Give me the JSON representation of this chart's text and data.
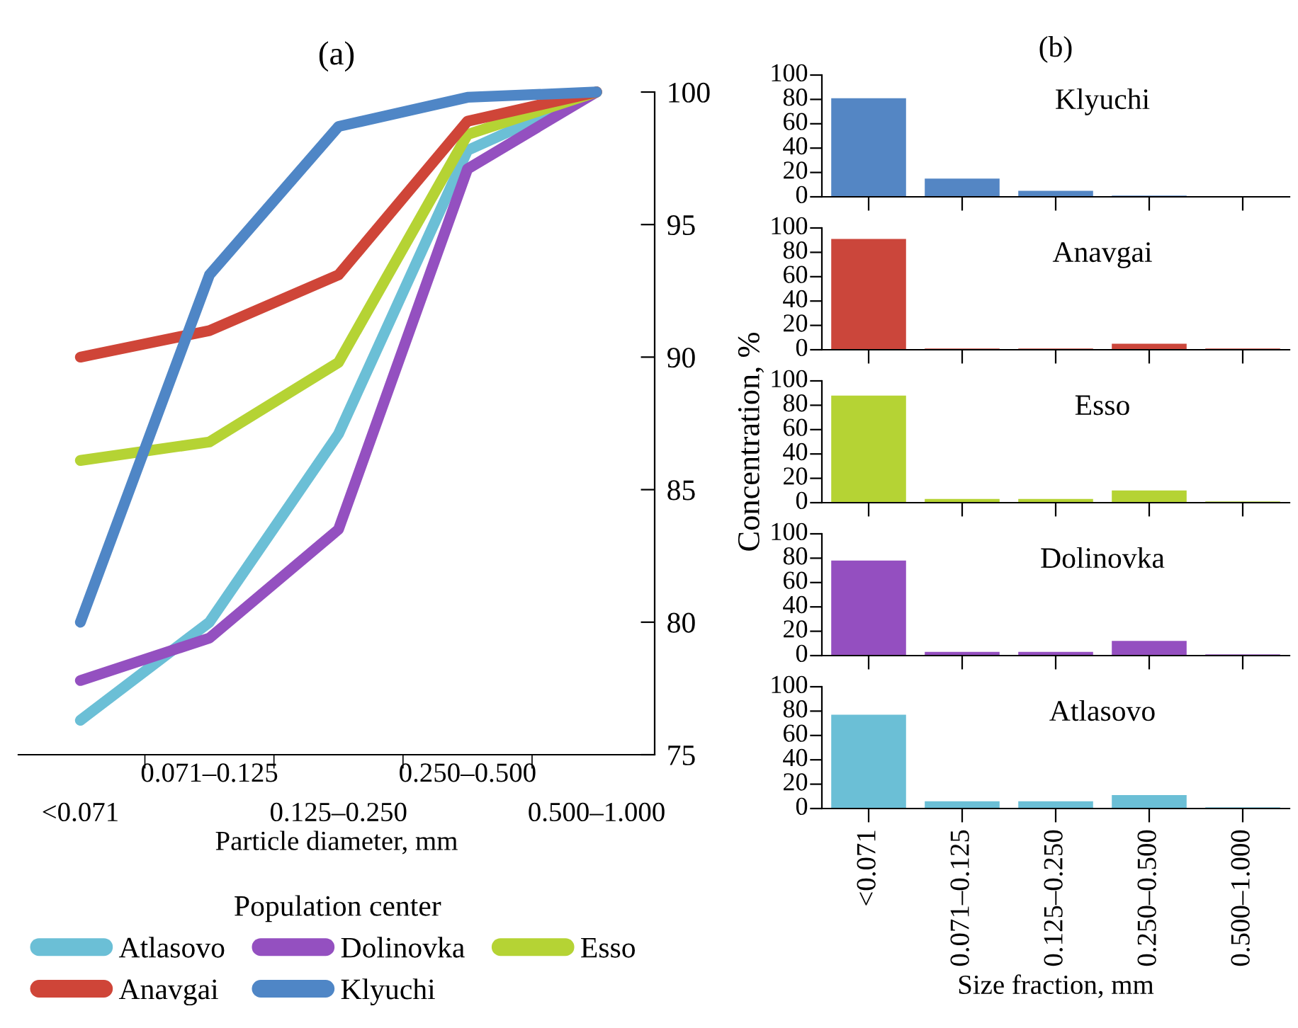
{
  "chart_data": [
    {
      "type": "line",
      "title": "(a)",
      "xlabel": "Particle diameter, mm",
      "legend_title": "Population center",
      "legend": "bottom",
      "categories": [
        "<0.071",
        "0.071–0.125",
        "0.125–0.250",
        "0.250–0.500",
        "0.500–1.000"
      ],
      "ylim": [
        75,
        100
      ],
      "yticks": [
        75,
        80,
        85,
        90,
        95,
        100
      ],
      "grid": false,
      "line_style": "solid",
      "marker": "none",
      "series": [
        {
          "name": "Atlasovo",
          "color": "#6bbfd6",
          "values": [
            76.3,
            80.0,
            87.1,
            97.8,
            100
          ]
        },
        {
          "name": "Dolinovka",
          "color": "#9450c0",
          "values": [
            77.8,
            79.4,
            83.5,
            97.1,
            100
          ]
        },
        {
          "name": "Esso",
          "color": "#b5d334",
          "values": [
            86.1,
            86.8,
            89.8,
            98.4,
            100
          ]
        },
        {
          "name": "Anavgai",
          "color": "#cf4538",
          "values": [
            90.0,
            91.0,
            93.1,
            98.9,
            100
          ]
        },
        {
          "name": "Klyuchi",
          "color": "#4f86c6",
          "values": [
            80.0,
            93.1,
            98.7,
            99.8,
            100
          ]
        }
      ]
    },
    {
      "type": "bar",
      "title": "Klyuchi",
      "annotations": [
        "(b)"
      ],
      "categories": [
        null,
        null,
        null,
        null,
        null
      ],
      "values": [
        81,
        15,
        5,
        1,
        0
      ],
      "color": "#5486c4",
      "ylim": [
        0,
        100
      ],
      "yticks": [
        0,
        20,
        40,
        60,
        80,
        100
      ],
      "tick_labels": "y"
    },
    {
      "type": "bar",
      "title": "Anavgai",
      "categories": [
        null,
        null,
        null,
        null,
        null
      ],
      "values": [
        91,
        1,
        1,
        5,
        1
      ],
      "color": "#cb463b",
      "ylim": [
        0,
        100
      ],
      "yticks": [
        0,
        20,
        40,
        60,
        80,
        100
      ],
      "tick_labels": "y"
    },
    {
      "type": "bar",
      "title": "Esso",
      "ylabel": "Concentration, %",
      "categories": [
        null,
        null,
        null,
        null,
        null
      ],
      "values": [
        88,
        3,
        3,
        10,
        1
      ],
      "color": "#b5d334",
      "ylim": [
        0,
        100
      ],
      "yticks": [
        0,
        20,
        40,
        60,
        80,
        100
      ],
      "tick_labels": "y"
    },
    {
      "type": "bar",
      "title": "Dolinovka",
      "categories": [
        null,
        null,
        null,
        null,
        null
      ],
      "values": [
        78,
        3,
        3,
        12,
        1
      ],
      "color": "#944fc0",
      "ylim": [
        0,
        100
      ],
      "yticks": [
        0,
        20,
        40,
        60,
        80,
        100
      ],
      "tick_labels": "y"
    },
    {
      "type": "bar",
      "title": "Atlasovo",
      "xlabel": "Size fraction, mm",
      "categories": [
        "<0.071",
        "0.071–0.125",
        "0.125–0.250",
        "0.250–0.500",
        "0.500–1.000"
      ],
      "values": [
        77,
        6,
        6,
        11,
        1
      ],
      "color": "#6bbfd6",
      "ylim": [
        0,
        100
      ],
      "yticks": [
        0,
        20,
        40,
        60,
        80,
        100
      ]
    }
  ]
}
